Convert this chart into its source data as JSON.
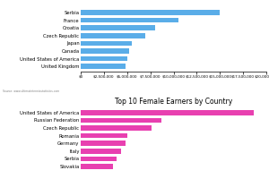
{
  "top_chart": {
    "categories": [
      "Serbia",
      "France",
      "Croatia",
      "Czech Republic",
      "Japan",
      "Canada",
      "United States of America",
      "United Kingdom"
    ],
    "values": [
      15000000,
      10500000,
      8000000,
      7000000,
      5500000,
      5200000,
      5000000,
      4800000
    ],
    "bar_color": "#5aade8",
    "xlim": [
      0,
      20000000
    ],
    "xticks": [
      0,
      2500000,
      5000000,
      7500000,
      10000000,
      12500000,
      15000000,
      17500000,
      20000000
    ],
    "xtick_labels": [
      "$0",
      "$2,500,000",
      "$5,000,000",
      "$7,500,000",
      "$10,000,000",
      "$12,500,000",
      "$15,000,000",
      "$17,500,000",
      "$20,000,000"
    ],
    "source": "Source: www.ultimatetennisstatistics.com"
  },
  "bottom_chart": {
    "title": "Top 10 Female Earners by Country",
    "categories": [
      "United States of America",
      "Russian Federation",
      "Czech Republic",
      "Romania",
      "Germany",
      "Italy",
      "Serbia",
      "Slovakia"
    ],
    "values": [
      28000000,
      13000000,
      11500000,
      7500000,
      7300000,
      6500000,
      5800000,
      5200000
    ],
    "bar_color": "#e840b0",
    "xlim": [
      0,
      30000000
    ]
  },
  "background_color": "#ffffff",
  "label_fontsize": 3.8,
  "tick_fontsize": 3.0,
  "title_fontsize": 5.5
}
